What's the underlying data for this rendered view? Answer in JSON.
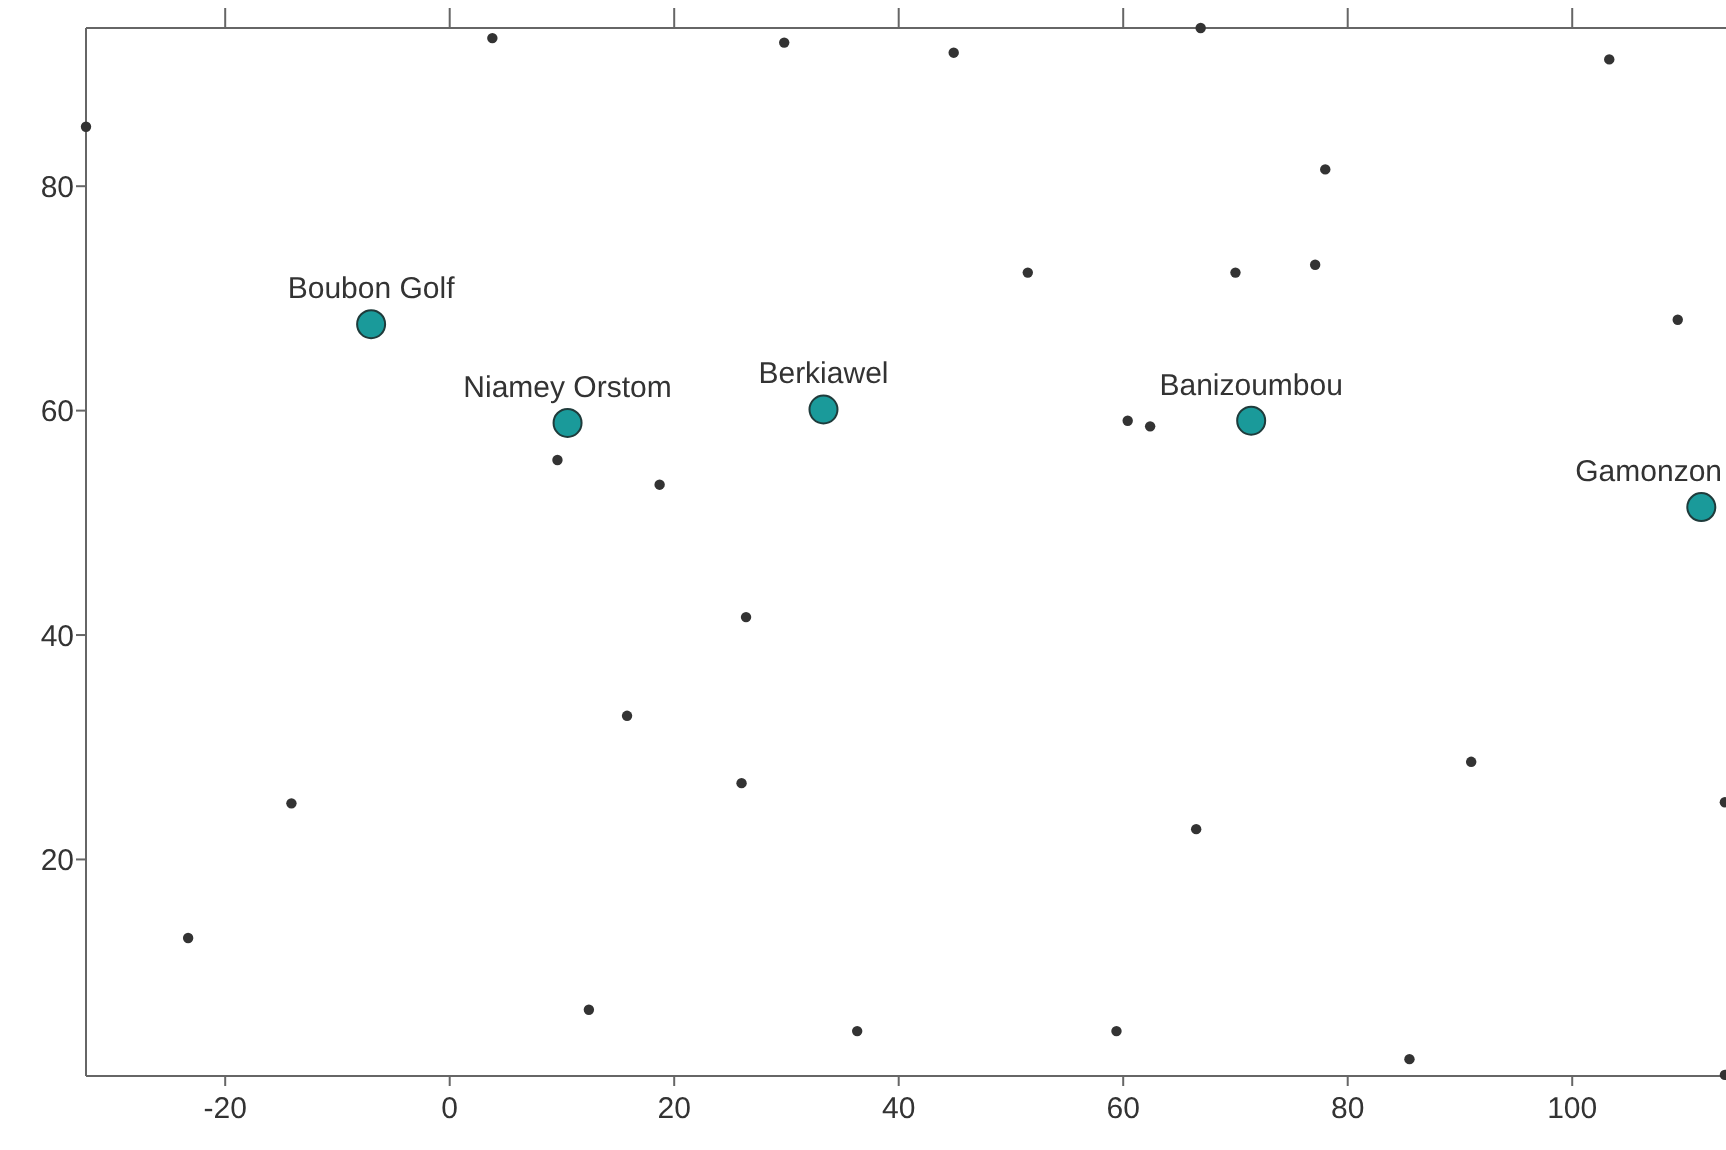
{
  "chart_data": {
    "type": "scatter",
    "xlim": [
      -32.4,
      113.7
    ],
    "ylim": [
      0.7,
      94.1
    ],
    "xticks": [
      -20,
      0,
      20,
      40,
      60,
      80,
      100
    ],
    "yticks": [
      20,
      40,
      60,
      80
    ],
    "grid": false,
    "marker": "circle",
    "series": [
      {
        "color": "#333333",
        "x": [
          -32.4,
          3.8,
          29.8,
          44.9,
          66.9,
          103.3,
          78.0,
          51.5,
          70.0,
          77.1,
          109.4,
          60.4,
          62.4,
          9.6,
          18.7,
          26.4,
          15.8,
          26.0,
          -14.1,
          -23.3,
          12.4,
          36.3,
          59.4,
          66.5,
          91.0,
          85.5,
          113.6,
          113.6
        ],
        "values": [
          85.3,
          93.2,
          92.8,
          91.9,
          94.1,
          91.3,
          81.5,
          72.3,
          72.3,
          73.0,
          68.1,
          59.1,
          58.6,
          55.6,
          53.4,
          41.6,
          32.8,
          26.8,
          25.0,
          13.0,
          6.6,
          4.7,
          4.7,
          22.7,
          28.7,
          2.2,
          0.8,
          25.1
        ]
      },
      {
        "color": "#1a9a9a",
        "x": [
          -7.0,
          10.5,
          33.3,
          71.4,
          111.5
        ],
        "values": [
          67.7,
          58.9,
          60.1,
          59.1,
          51.4
        ]
      }
    ],
    "annotations": [
      {
        "text": "Boubon Golf",
        "x": -7.0,
        "y": 67.7
      },
      {
        "text": "Niamey Orstom",
        "x": 10.5,
        "y": 58.9
      },
      {
        "text": "Berkiawel",
        "x": 33.3,
        "y": 60.1
      },
      {
        "text": "Banizoumbou",
        "x": 71.4,
        "y": 59.1
      },
      {
        "text": "Gamonzon",
        "x": 111.5,
        "y": 51.4
      }
    ]
  }
}
